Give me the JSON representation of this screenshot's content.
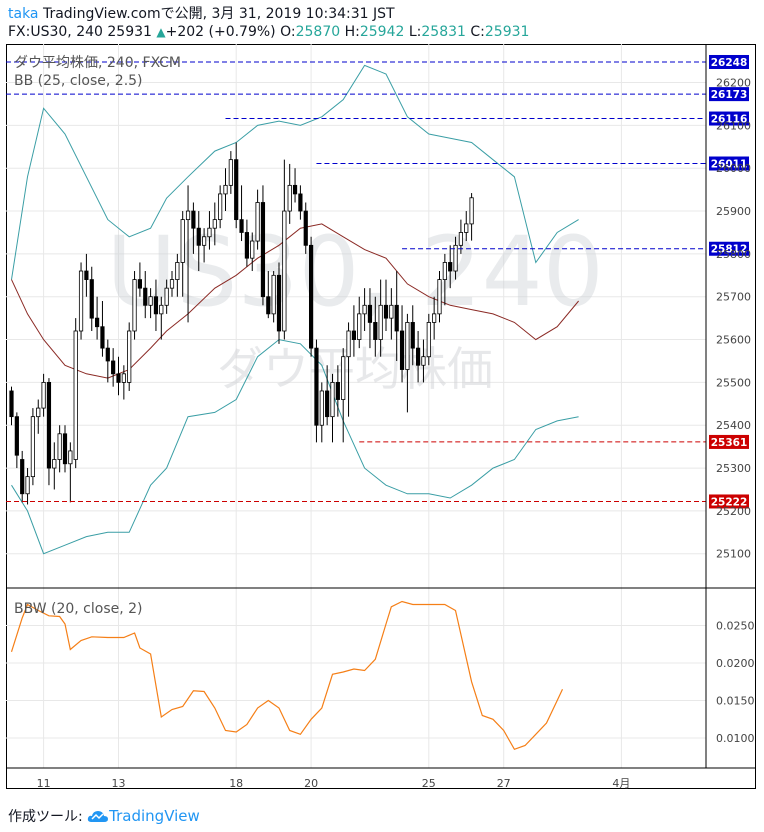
{
  "header": {
    "user": "taka",
    "line1": "TradingView.comで公開, 3月 31, 2019 10:34:31 JST",
    "symbol_tf_last": "FX:US30, 240 25931",
    "change": "+202 (+0.79%)",
    "o_label": "O:",
    "o_value": "25870",
    "h_label": "H:",
    "h_value": "25942",
    "l_label": "L:",
    "l_value": "25831",
    "c_label": "C:",
    "c_value": "25931",
    "up_symbol": "▲"
  },
  "watermark": {
    "symbol": "US30, 240",
    "name": "ダウ平均株価"
  },
  "legend": {
    "main": "ダウ平均株価, 240, FXCM",
    "bb": "BB (25, close, 2.5)",
    "bbw": "BBW (20, close, 2)"
  },
  "footer": {
    "label": "作成ツール:",
    "brand": "TradingView"
  },
  "colors": {
    "up": "#ffffff",
    "down": "#000000",
    "bb_band": "#3a9ea5",
    "bb_mid": "#8b2a25",
    "bbw": "#f57f17",
    "blue_level": "#0000cc",
    "red_level": "#cc0000",
    "grid": "#e8e8e8"
  },
  "chart_data": [
    {
      "type": "candlestick",
      "title": "ダウ平均株価, 240, FXCM",
      "y_ticks": [
        25100,
        25200,
        25300,
        25400,
        25500,
        25600,
        25700,
        25800,
        25900,
        26000,
        26100,
        26200
      ],
      "ylim": [
        25020,
        26290
      ],
      "x_tick_labels": [
        {
          "label": "11",
          "bar": 6
        },
        {
          "label": "13",
          "bar": 20
        },
        {
          "label": "18",
          "bar": 42
        },
        {
          "label": "20",
          "bar": 56
        },
        {
          "label": "25",
          "bar": 78
        },
        {
          "label": "27",
          "bar": 92
        },
        {
          "label": "4月",
          "bar": 114
        }
      ],
      "candles": [
        [
          25480,
          25490,
          25400,
          25420
        ],
        [
          25420,
          25430,
          25300,
          25330
        ],
        [
          25320,
          25340,
          25220,
          25240
        ],
        [
          25240,
          25300,
          25215,
          25280
        ],
        [
          25280,
          25440,
          25260,
          25420
        ],
        [
          25420,
          25460,
          25380,
          25440
        ],
        [
          25440,
          25520,
          25420,
          25500
        ],
        [
          25500,
          25510,
          25260,
          25300
        ],
        [
          25300,
          25360,
          25250,
          25320
        ],
        [
          25320,
          25400,
          25290,
          25380
        ],
        [
          25380,
          25400,
          25290,
          25310
        ],
        [
          25310,
          25360,
          25220,
          25340
        ],
        [
          25320,
          25650,
          25300,
          25620
        ],
        [
          25620,
          25780,
          25600,
          25760
        ],
        [
          25760,
          25800,
          25700,
          25740
        ],
        [
          25740,
          25770,
          25620,
          25650
        ],
        [
          25650,
          25700,
          25600,
          25630
        ],
        [
          25630,
          25690,
          25560,
          25580
        ],
        [
          25580,
          25600,
          25500,
          25550
        ],
        [
          25550,
          25580,
          25490,
          25520
        ],
        [
          25520,
          25560,
          25470,
          25500
        ],
        [
          25500,
          25540,
          25460,
          25520
        ],
        [
          25500,
          25640,
          25480,
          25620
        ],
        [
          25620,
          25760,
          25600,
          25740
        ],
        [
          25740,
          25780,
          25700,
          25720
        ],
        [
          25720,
          25760,
          25650,
          25680
        ],
        [
          25680,
          25720,
          25650,
          25700
        ],
        [
          25700,
          25740,
          25620,
          25660
        ],
        [
          25660,
          25700,
          25600,
          25680
        ],
        [
          25680,
          25740,
          25660,
          25720
        ],
        [
          25720,
          25760,
          25700,
          25740
        ],
        [
          25740,
          25800,
          25700,
          25780
        ],
        [
          25780,
          25900,
          25700,
          25880
        ],
        [
          25880,
          25960,
          25640,
          25900
        ],
        [
          25900,
          25920,
          25800,
          25860
        ],
        [
          25860,
          25900,
          25760,
          25820
        ],
        [
          25820,
          25860,
          25780,
          25840
        ],
        [
          25840,
          25900,
          25810,
          25860
        ],
        [
          25860,
          25920,
          25820,
          25880
        ],
        [
          25880,
          25960,
          25860,
          25940
        ],
        [
          25940,
          26000,
          25900,
          25960
        ],
        [
          25960,
          26040,
          25940,
          26020
        ],
        [
          26020,
          26060,
          25860,
          25880
        ],
        [
          25880,
          25960,
          25830,
          25850
        ],
        [
          25850,
          25880,
          25770,
          25790
        ],
        [
          25790,
          25850,
          25760,
          25830
        ],
        [
          25830,
          25950,
          25810,
          25920
        ],
        [
          25920,
          25960,
          25680,
          25700
        ],
        [
          25700,
          25760,
          25650,
          25660
        ],
        [
          25660,
          25760,
          25640,
          25750
        ],
        [
          25750,
          25780,
          25590,
          25620
        ],
        [
          25620,
          26020,
          25600,
          25900
        ],
        [
          25900,
          26010,
          25870,
          25960
        ],
        [
          25960,
          26000,
          25920,
          25940
        ],
        [
          25940,
          25960,
          25880,
          25900
        ],
        [
          25900,
          25920,
          25800,
          25820
        ],
        [
          25820,
          25840,
          25560,
          25580
        ],
        [
          25580,
          25600,
          25360,
          25400
        ],
        [
          25400,
          25500,
          25360,
          25480
        ],
        [
          25480,
          25540,
          25400,
          25420
        ],
        [
          25420,
          25520,
          25360,
          25500
        ],
        [
          25500,
          25540,
          25420,
          25460
        ],
        [
          25460,
          25580,
          25360,
          25560
        ],
        [
          25560,
          25640,
          25420,
          25620
        ],
        [
          25620,
          25680,
          25560,
          25600
        ],
        [
          25600,
          25700,
          25580,
          25660
        ],
        [
          25660,
          25720,
          25620,
          25680
        ],
        [
          25680,
          25720,
          25580,
          25640
        ],
        [
          25640,
          25700,
          25560,
          25600
        ],
        [
          25600,
          25740,
          25560,
          25680
        ],
        [
          25680,
          25740,
          25620,
          25650
        ],
        [
          25650,
          25720,
          25600,
          25680
        ],
        [
          25680,
          25760,
          25550,
          25620
        ],
        [
          25620,
          25680,
          25500,
          25530
        ],
        [
          25530,
          25660,
          25430,
          25640
        ],
        [
          25640,
          25680,
          25540,
          25580
        ],
        [
          25580,
          25620,
          25500,
          25540
        ],
        [
          25540,
          25600,
          25500,
          25560
        ],
        [
          25560,
          25660,
          25540,
          25640
        ],
        [
          25640,
          25700,
          25600,
          25660
        ],
        [
          25660,
          25760,
          25640,
          25740
        ],
        [
          25740,
          25800,
          25680,
          25780
        ],
        [
          25780,
          25820,
          25720,
          25760
        ],
        [
          25760,
          25840,
          25740,
          25820
        ],
        [
          25820,
          25880,
          25800,
          25850
        ],
        [
          25850,
          25900,
          25830,
          25870
        ],
        [
          25870,
          25942,
          25831,
          25931
        ]
      ],
      "bb_upper": [
        [
          0,
          25740
        ],
        [
          3,
          25980
        ],
        [
          6,
          26140
        ],
        [
          10,
          26080
        ],
        [
          14,
          25980
        ],
        [
          18,
          25880
        ],
        [
          22,
          25840
        ],
        [
          26,
          25860
        ],
        [
          29,
          25930
        ],
        [
          33,
          25980
        ],
        [
          38,
          26040
        ],
        [
          42,
          26060
        ],
        [
          46,
          26100
        ],
        [
          50,
          26110
        ],
        [
          54,
          26100
        ],
        [
          58,
          26120
        ],
        [
          62,
          26160
        ],
        [
          66,
          26240
        ],
        [
          70,
          26220
        ],
        [
          74,
          26120
        ],
        [
          78,
          26080
        ],
        [
          82,
          26070
        ],
        [
          86,
          26060
        ],
        [
          90,
          26020
        ],
        [
          94,
          25980
        ],
        [
          98,
          25780
        ],
        [
          102,
          25850
        ],
        [
          106,
          25880
        ]
      ],
      "bb_mid": [
        [
          0,
          25740
        ],
        [
          3,
          25660
        ],
        [
          6,
          25600
        ],
        [
          10,
          25540
        ],
        [
          14,
          25520
        ],
        [
          18,
          25510
        ],
        [
          22,
          25530
        ],
        [
          26,
          25580
        ],
        [
          29,
          25620
        ],
        [
          33,
          25660
        ],
        [
          38,
          25720
        ],
        [
          42,
          25750
        ],
        [
          46,
          25790
        ],
        [
          50,
          25820
        ],
        [
          54,
          25860
        ],
        [
          58,
          25870
        ],
        [
          62,
          25840
        ],
        [
          66,
          25810
        ],
        [
          70,
          25790
        ],
        [
          74,
          25730
        ],
        [
          78,
          25700
        ],
        [
          82,
          25680
        ],
        [
          86,
          25670
        ],
        [
          90,
          25660
        ],
        [
          94,
          25640
        ],
        [
          98,
          25600
        ],
        [
          102,
          25630
        ],
        [
          106,
          25690
        ]
      ],
      "bb_lower": [
        [
          0,
          25260
        ],
        [
          3,
          25200
        ],
        [
          6,
          25100
        ],
        [
          10,
          25120
        ],
        [
          14,
          25140
        ],
        [
          18,
          25150
        ],
        [
          22,
          25150
        ],
        [
          26,
          25260
        ],
        [
          29,
          25300
        ],
        [
          33,
          25420
        ],
        [
          38,
          25430
        ],
        [
          42,
          25460
        ],
        [
          46,
          25560
        ],
        [
          50,
          25600
        ],
        [
          54,
          25590
        ],
        [
          58,
          25540
        ],
        [
          62,
          25410
        ],
        [
          66,
          25300
        ],
        [
          70,
          25260
        ],
        [
          74,
          25240
        ],
        [
          78,
          25240
        ],
        [
          82,
          25230
        ],
        [
          86,
          25260
        ],
        [
          90,
          25300
        ],
        [
          94,
          25320
        ],
        [
          98,
          25390
        ],
        [
          102,
          25410
        ],
        [
          106,
          25420
        ]
      ],
      "levels": [
        {
          "value": 26248,
          "label": "26248",
          "color": "blue",
          "start_bar": -1
        },
        {
          "value": 26173,
          "label": "26173",
          "color": "blue",
          "start_bar": -1
        },
        {
          "value": 26116,
          "label": "26116",
          "color": "blue",
          "start_bar": 40
        },
        {
          "value": 26011,
          "label": "26011",
          "color": "blue",
          "start_bar": 57
        },
        {
          "value": 25812,
          "label": "25812",
          "color": "blue",
          "start_bar": 73
        },
        {
          "value": 25361,
          "label": "25361",
          "color": "red",
          "start_bar": 65
        },
        {
          "value": 25222,
          "label": "25222",
          "color": "red",
          "start_bar": -1
        }
      ]
    },
    {
      "type": "line",
      "title": "BBW (20, close, 2)",
      "y_ticks": [
        0.01,
        0.015,
        0.02,
        0.025
      ],
      "ylim": [
        0.006,
        0.03
      ],
      "y_tick_labels": [
        "0.0100",
        "0.0150",
        "0.0200",
        "0.0250"
      ],
      "points": [
        [
          0,
          0.0215
        ],
        [
          2,
          0.026
        ],
        [
          3,
          0.0278
        ],
        [
          5,
          0.027
        ],
        [
          7,
          0.0263
        ],
        [
          9,
          0.0262
        ],
        [
          10,
          0.0252
        ],
        [
          11,
          0.0218
        ],
        [
          13,
          0.023
        ],
        [
          15,
          0.0235
        ],
        [
          18,
          0.0234
        ],
        [
          21,
          0.0234
        ],
        [
          23,
          0.024
        ],
        [
          24,
          0.022
        ],
        [
          26,
          0.0212
        ],
        [
          28,
          0.0128
        ],
        [
          30,
          0.0138
        ],
        [
          32,
          0.0142
        ],
        [
          34,
          0.0163
        ],
        [
          36,
          0.0162
        ],
        [
          38,
          0.014
        ],
        [
          40,
          0.011
        ],
        [
          42,
          0.0108
        ],
        [
          44,
          0.0118
        ],
        [
          46,
          0.014
        ],
        [
          48,
          0.015
        ],
        [
          50,
          0.014
        ],
        [
          52,
          0.011
        ],
        [
          54,
          0.0105
        ],
        [
          56,
          0.0125
        ],
        [
          58,
          0.014
        ],
        [
          60,
          0.0185
        ],
        [
          62,
          0.0188
        ],
        [
          64,
          0.0192
        ],
        [
          66,
          0.019
        ],
        [
          68,
          0.0205
        ],
        [
          70,
          0.0252
        ],
        [
          71,
          0.0275
        ],
        [
          73,
          0.0282
        ],
        [
          75,
          0.0278
        ],
        [
          78,
          0.0278
        ],
        [
          81,
          0.0278
        ],
        [
          83,
          0.027
        ],
        [
          86,
          0.0175
        ],
        [
          88,
          0.013
        ],
        [
          90,
          0.0125
        ],
        [
          92,
          0.011
        ],
        [
          94,
          0.0085
        ],
        [
          96,
          0.009
        ],
        [
          98,
          0.0105
        ],
        [
          100,
          0.012
        ],
        [
          102,
          0.015
        ],
        [
          103,
          0.0165
        ]
      ]
    }
  ]
}
